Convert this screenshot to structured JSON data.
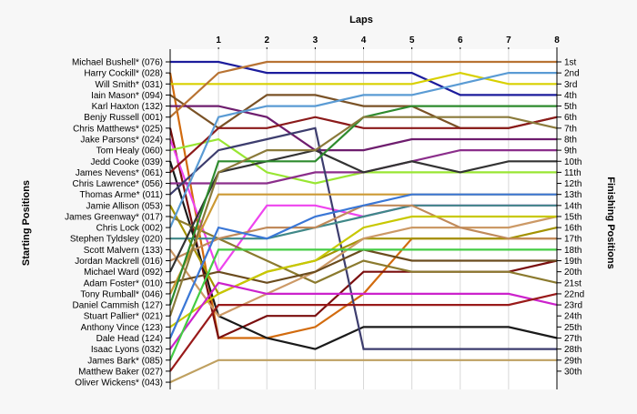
{
  "chart_data": {
    "type": "line",
    "title": "Laps",
    "ylabel_left": "Starting Positions",
    "ylabel_right": "Finishing Positions",
    "laps": [
      1,
      2,
      3,
      4,
      5,
      6,
      7,
      8
    ],
    "finishing_labels": [
      "1st",
      "2nd",
      "3rd",
      "4th",
      "5th",
      "6th",
      "7th",
      "8th",
      "9th",
      "10th",
      "11th",
      "12th",
      "13th",
      "14th",
      "15th",
      "16th",
      "17th",
      "18th",
      "19th",
      "20th",
      "21st",
      "22nd",
      "23rd",
      "24th",
      "25th",
      "27th",
      "28th",
      "29th",
      "30th"
    ],
    "grid": true,
    "series": [
      {
        "name": "Michael Bushell* (076)",
        "color": "#1c1c9c",
        "positions": [
          1,
          1,
          2,
          2,
          2,
          2,
          4,
          4,
          4
        ]
      },
      {
        "name": "Harry Cockill* (028)",
        "color": "#d26b0e",
        "positions": [
          2,
          26,
          26,
          25,
          22,
          17,
          17,
          17,
          17
        ]
      },
      {
        "name": "Will Smith* (031)",
        "color": "#d8d000",
        "positions": [
          3,
          3,
          3,
          3,
          3,
          3,
          2,
          3,
          3
        ]
      },
      {
        "name": "Iain Mason* (094)",
        "color": "#7a5226",
        "positions": [
          4,
          7,
          4,
          4,
          5,
          5,
          7,
          7,
          6
        ]
      },
      {
        "name": "Karl Haxton (132)",
        "color": "#6e1d6e",
        "positions": [
          5,
          5,
          6,
          9,
          9,
          8,
          8,
          8,
          8
        ]
      },
      {
        "name": "Benjy Russell (001)",
        "color": "#b87333",
        "positions": [
          6,
          2,
          1,
          1,
          1,
          1,
          1,
          1,
          1
        ]
      },
      {
        "name": "Chris Matthews* (025)",
        "color": "#7a0e0e",
        "positions": [
          7,
          26,
          24,
          24,
          20,
          20,
          20,
          20,
          19
        ]
      },
      {
        "name": "Jake Parsons* (024)",
        "color": "#ee44ee",
        "positions": [
          8,
          20,
          14,
          14,
          15,
          14,
          14,
          14,
          14
        ]
      },
      {
        "name": "Tom Healy (060)",
        "color": "#99e633",
        "positions": [
          9,
          8,
          11,
          12,
          11,
          11,
          11,
          11,
          11
        ]
      },
      {
        "name": "Jedd Cooke (039)",
        "color": "#1a1a1a",
        "positions": [
          10,
          24,
          26,
          27,
          25,
          25,
          25,
          25,
          26
        ]
      },
      {
        "name": "James Nevens* (061)",
        "color": "#8b1a1a",
        "positions": [
          11,
          7,
          7,
          6,
          7,
          7,
          7,
          7,
          6
        ]
      },
      {
        "name": "Chris Lawrence* (056)",
        "color": "#8b2e8b",
        "positions": [
          12,
          12,
          12,
          11,
          11,
          10,
          9,
          9,
          9
        ]
      },
      {
        "name": "Thomas Arme* (011)",
        "color": "#3d3d6e",
        "positions": [
          13,
          9,
          8,
          7,
          27,
          27,
          27,
          27,
          27
        ]
      },
      {
        "name": "Jamie Allison (053)",
        "color": "#a39200",
        "positions": [
          14,
          22,
          20,
          19,
          17,
          17,
          17,
          17,
          16
        ]
      },
      {
        "name": "James Greenway* (017)",
        "color": "#8b7a2e",
        "positions": [
          15,
          17,
          19,
          21,
          19,
          20,
          20,
          20,
          21
        ]
      },
      {
        "name": "Chris Lock (002)",
        "color": "#5a9bd4",
        "positions": [
          16,
          6,
          5,
          5,
          4,
          4,
          3,
          2,
          2
        ]
      },
      {
        "name": "Stephen Tyldsley (020)",
        "color": "#3f8888",
        "positions": [
          17,
          17,
          17,
          16,
          15,
          14,
          14,
          14,
          14
        ]
      },
      {
        "name": "Scott Malvern (133)",
        "color": "#cc9966",
        "positions": [
          18,
          24,
          22,
          20,
          17,
          16,
          16,
          16,
          15
        ]
      },
      {
        "name": "Jordan Mackrell (016)",
        "color": "#c08a5a",
        "positions": [
          19,
          17,
          16,
          16,
          14,
          14,
          16,
          17,
          17
        ]
      },
      {
        "name": "Michael Ward (092)",
        "color": "#333333",
        "positions": [
          20,
          11,
          10,
          9,
          11,
          10,
          11,
          10,
          10
        ]
      },
      {
        "name": "Adam Foster* (010)",
        "color": "#6b4c1e",
        "positions": [
          21,
          20,
          21,
          20,
          18,
          19,
          19,
          19,
          19
        ]
      },
      {
        "name": "Tony Rumball* (046)",
        "color": "#cc9933",
        "positions": [
          22,
          13,
          13,
          13,
          13,
          13,
          13,
          13,
          13
        ]
      },
      {
        "name": "Daniel Cammish (127)",
        "color": "#2e8b2e",
        "positions": [
          23,
          10,
          10,
          10,
          6,
          5,
          5,
          5,
          5
        ]
      },
      {
        "name": "Stuart Pallier* (021)",
        "color": "#8a7a3a",
        "positions": [
          24,
          11,
          9,
          9,
          6,
          6,
          6,
          6,
          7
        ]
      },
      {
        "name": "Anthony Vince (123)",
        "color": "#c8c800",
        "positions": [
          25,
          22,
          20,
          19,
          16,
          15,
          15,
          15,
          15
        ]
      },
      {
        "name": "Dale Head (124)",
        "color": "#3a77d6",
        "positions": [
          26,
          16,
          17,
          15,
          14,
          13,
          13,
          13,
          13
        ]
      },
      {
        "name": "Isaac Lyons (032)",
        "color": "#cc22cc",
        "positions": [
          27,
          21,
          22,
          22,
          22,
          22,
          22,
          22,
          23
        ]
      },
      {
        "name": "James Bark* (085)",
        "color": "#44cc44",
        "positions": [
          28,
          18,
          18,
          18,
          18,
          18,
          18,
          18,
          18
        ]
      },
      {
        "name": "Matthew Baker (027)",
        "color": "#991a1a",
        "positions": [
          29,
          23,
          23,
          23,
          23,
          23,
          23,
          23,
          22
        ]
      },
      {
        "name": "Oliver Wickens* (043)",
        "color": "#bfa060",
        "positions": [
          30,
          28,
          28,
          28,
          28,
          28,
          28,
          28,
          28
        ]
      }
    ]
  }
}
